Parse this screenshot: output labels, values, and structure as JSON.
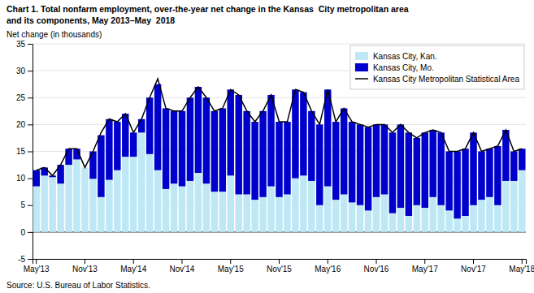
{
  "chart_data": {
    "type": "bar",
    "title": "Chart 1. Total nonfarm employment, over-the-year net change in the Kansas  City metropolitan area",
    "subtitle": "and its components, May 2013–May  2018",
    "y_label": "Net change (in thousands)",
    "source": "Source: U.S. Bureau of Labor Statistics.",
    "categories": [
      "May'13",
      null,
      null,
      null,
      null,
      null,
      "Nov'13",
      null,
      null,
      null,
      null,
      null,
      "May'14",
      null,
      null,
      null,
      null,
      null,
      "Nov'14",
      null,
      null,
      null,
      null,
      null,
      "May'15",
      null,
      null,
      null,
      null,
      null,
      "Nov'15",
      null,
      null,
      null,
      null,
      null,
      "May'16",
      null,
      null,
      null,
      null,
      null,
      "Nov'16",
      null,
      null,
      null,
      null,
      null,
      "May'17",
      null,
      null,
      null,
      null,
      null,
      "Nov'17",
      null,
      null,
      null,
      null,
      null,
      "May'18"
    ],
    "series": [
      {
        "name": "Kansas City, Kan.",
        "type": "bar",
        "color": "#BEE8F5",
        "values": [
          8.5,
          10.5,
          10.2,
          9.0,
          12.5,
          13.5,
          12.0,
          9.9,
          6.5,
          9.7,
          11.5,
          14.0,
          14.0,
          18.5,
          14.5,
          11.5,
          8.0,
          9.0,
          8.5,
          9.5,
          11.0,
          9.0,
          7.5,
          7.5,
          10.5,
          7.0,
          7.0,
          6.0,
          6.5,
          8.5,
          6.5,
          7.0,
          10.0,
          10.5,
          9.5,
          5.0,
          8.5,
          6.0,
          7.0,
          5.5,
          5.0,
          4.0,
          6.5,
          7.0,
          3.5,
          4.5,
          3.0,
          5.0,
          4.5,
          6.5,
          5.0,
          4.0,
          2.5,
          3.0,
          5.0,
          6.0,
          6.5,
          5.0,
          9.5,
          9.5,
          11.5
        ]
      },
      {
        "name": "Kansas City, Mo.",
        "type": "bar",
        "color": "#0000CC",
        "values": [
          3.0,
          1.5,
          0.3,
          3.5,
          3.0,
          2.0,
          0.0,
          5.1,
          11.5,
          11.3,
          9.0,
          8.0,
          4.5,
          2.5,
          10.5,
          16.0,
          15.0,
          13.5,
          14.0,
          15.5,
          16.0,
          16.0,
          15.0,
          15.5,
          16.0,
          18.5,
          15.5,
          14.5,
          16.0,
          17.0,
          14.0,
          13.5,
          16.5,
          15.5,
          13.0,
          15.0,
          18.0,
          14.5,
          16.0,
          15.0,
          15.0,
          15.5,
          13.5,
          13.0,
          15.0,
          15.5,
          15.5,
          12.5,
          14.0,
          12.5,
          13.5,
          11.0,
          12.5,
          12.5,
          13.5,
          9.0,
          9.0,
          11.0,
          9.5,
          5.5,
          4.0
        ]
      },
      {
        "name": "Kansas City Metropolitan Statistical Area",
        "type": "line",
        "color": "#000000",
        "values": [
          11.5,
          12.0,
          10.5,
          12.5,
          15.5,
          15.5,
          12.0,
          15.0,
          18.5,
          21.0,
          20.5,
          22.0,
          18.5,
          21.0,
          25.0,
          28.5,
          23.0,
          22.5,
          22.5,
          25.0,
          27.0,
          25.0,
          22.5,
          23.0,
          26.5,
          25.5,
          22.5,
          20.5,
          22.5,
          25.5,
          20.5,
          20.5,
          26.5,
          26.0,
          22.5,
          20.0,
          26.5,
          20.5,
          23.0,
          20.5,
          20.0,
          19.5,
          20.0,
          20.0,
          18.5,
          20.0,
          18.5,
          17.5,
          18.5,
          19.0,
          18.5,
          15.0,
          15.0,
          15.5,
          18.5,
          15.0,
          15.5,
          16.0,
          19.0,
          15.0,
          15.5
        ]
      }
    ],
    "stacked": true,
    "ylim": [
      -5.0,
      35.0
    ],
    "yticks": [
      -5,
      0,
      5,
      10,
      15,
      20,
      25,
      30,
      35
    ],
    "grid": true,
    "legend": "upper right"
  }
}
